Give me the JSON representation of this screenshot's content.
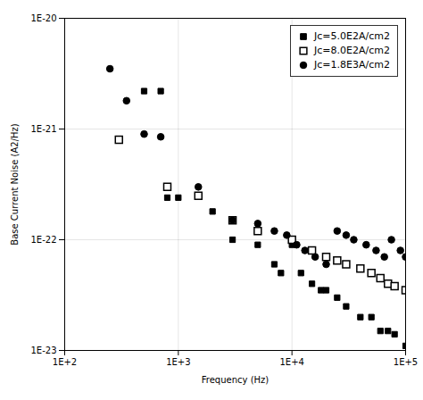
{
  "chart_data": {
    "type": "scatter",
    "xlabel": "Frequency (Hz)",
    "ylabel": "Base Current Noise (A2/Hz)",
    "log": true,
    "xlim": [
      100,
      100000
    ],
    "ylim": [
      1e-23,
      1e-20
    ],
    "xticks": [
      {
        "value": 100,
        "label": "1E+2"
      },
      {
        "value": 1000,
        "label": "1E+3"
      },
      {
        "value": 10000,
        "label": "1E+4"
      },
      {
        "value": 100000,
        "label": "1E+5"
      }
    ],
    "yticks": [
      {
        "value": 1e-23,
        "label": "1E-23"
      },
      {
        "value": 1e-22,
        "label": "1E-22"
      },
      {
        "value": 1e-21,
        "label": "1E-21"
      },
      {
        "value": 1e-20,
        "label": "1E-20"
      }
    ],
    "grid": true,
    "legend": "upper right",
    "series": [
      {
        "name": "Jc=5.0E2A/cm2",
        "color": "black",
        "marker": "square",
        "x": [
          500,
          700,
          800,
          1000,
          2000,
          3000,
          5000,
          7000,
          8000,
          10000,
          12000,
          15000,
          18000,
          20000,
          25000,
          30000,
          40000,
          50000,
          60000,
          70000,
          80000,
          100000
        ],
        "values": [
          2.2e-21,
          2.2e-21,
          2.4e-22,
          2.4e-22,
          1.8e-22,
          1e-22,
          9e-23,
          6e-23,
          5e-23,
          9e-23,
          5e-23,
          4e-23,
          3.5e-23,
          3.5e-23,
          3e-23,
          2.5e-23,
          2e-23,
          2e-23,
          1.5e-23,
          1.5e-23,
          1.4e-23,
          1.1e-23
        ]
      },
      {
        "name": "Jc=8.0E2A/cm2",
        "color": "black",
        "marker": "square_open",
        "x": [
          300,
          800,
          1500,
          3000,
          5000,
          10000,
          15000,
          20000,
          25000,
          30000,
          40000,
          50000,
          60000,
          70000,
          80000,
          100000
        ],
        "values": [
          8e-22,
          3e-22,
          2.5e-22,
          1.5e-22,
          1.2e-22,
          1e-22,
          8e-23,
          7e-23,
          6.5e-23,
          6e-23,
          5.5e-23,
          5e-23,
          4.5e-23,
          4e-23,
          3.8e-23,
          3.5e-23
        ]
      },
      {
        "name": "Jc=1.8E3A/cm2",
        "color": "black",
        "marker": "circle",
        "x": [
          250,
          350,
          500,
          700,
          1500,
          3000,
          5000,
          7000,
          9000,
          11000,
          13000,
          16000,
          20000,
          25000,
          30000,
          35000,
          45000,
          55000,
          65000,
          75000,
          90000,
          100000
        ],
        "values": [
          3.5e-21,
          1.8e-21,
          9e-22,
          8.5e-22,
          3e-22,
          1.5e-22,
          1.4e-22,
          1.2e-22,
          1.1e-22,
          9e-23,
          8e-23,
          7e-23,
          6e-23,
          1.2e-22,
          1.1e-22,
          1e-22,
          9e-23,
          8e-23,
          7e-23,
          1e-22,
          8e-23,
          7e-23
        ]
      }
    ]
  }
}
